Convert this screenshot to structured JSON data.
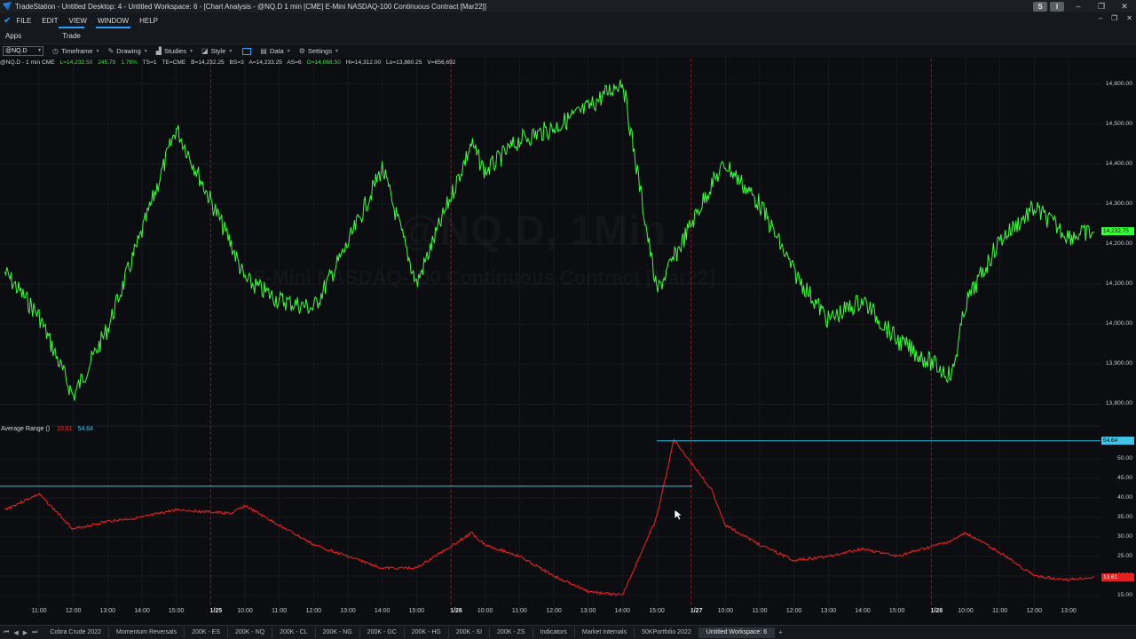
{
  "window": {
    "title": "TradeStation  - Untitled Desktop: 4 - Untitled Workspace:  6 - [Chart Analysis - @NQ.D 1 min [CME] E-Mini NASDAQ-100 Continuous Contract [Mar22]]",
    "s_button": "S",
    "i_button": "I"
  },
  "menu": {
    "items": [
      "FILE",
      "EDIT",
      "VIEW",
      "WINDOW",
      "HELP"
    ]
  },
  "tabs": [
    "Apps",
    "Trade"
  ],
  "toolbar": {
    "symbol": "@NQ.D",
    "timeframe": "Timeframe",
    "drawing": "Drawing",
    "studies": "Studies",
    "style": "Style",
    "data": "Data",
    "settings": "Settings"
  },
  "infoline": {
    "symbol": "@NQ.D - 1 min  CME",
    "last": "L=14,232.50",
    "change": "245.75",
    "pct": "1.76%",
    "ts": "TS=1",
    "te": "TE=CME",
    "bid": "B=14,232.25",
    "bs": "BS=3",
    "ask": "A=14,233.25",
    "as": "AS=6",
    "open": "O=14,068.50",
    "high": "Hi=14,312.00",
    "low": "Lo=13,860.25",
    "vol": "V=656,692"
  },
  "watermark": {
    "line1": "@NQ.D, 1Min",
    "line2": "E-Mini NASDAQ-100 Continuous Contract [Mar22]"
  },
  "indicator": {
    "name": "Average Range ()",
    "value_red": "19.61",
    "value_blue": "54.64"
  },
  "price_axis": {
    "labels": [
      "14,600.00",
      "14,500.00",
      "14,400.00",
      "14,300.00",
      "14,200.00",
      "14,100.00",
      "14,000.00",
      "13,900.00",
      "13,800.00"
    ],
    "last_tag": "14,232.75"
  },
  "ind_axis": {
    "labels": [
      "50.00",
      "45.00",
      "40.00",
      "35.00",
      "30.00",
      "25.00",
      "20.00",
      "15.00"
    ],
    "blue_tag": "54.64",
    "red_tag": "19.61"
  },
  "time_axis": {
    "labels": [
      "11:00",
      "12:00",
      "13:00",
      "14:00",
      "15:00",
      "1/25",
      "10:00",
      "11:00",
      "12:00",
      "13:00",
      "14:00",
      "15:00",
      "1/26",
      "10:00",
      "11:00",
      "12:00",
      "13:00",
      "14:00",
      "15:00",
      "1/27",
      "10:00",
      "11:00",
      "12:00",
      "13:00",
      "14:00",
      "15:00",
      "1/28",
      "10:00",
      "11:00",
      "12:00",
      "13:00"
    ]
  },
  "workspace_tabs": [
    "Cobra Crude 2022",
    "Momentum Reversals",
    "200K - ES",
    "200K - NQ",
    "200K - CL",
    "200K - NG",
    "200K - GC",
    "200K - HG",
    "200K - SI",
    "200K - ZS",
    "Indicators",
    "Market Internals",
    "50KPortfolio 2022",
    "Untitled Workspace: 6"
  ],
  "colors": {
    "price_line": "#39ff39",
    "indicator_line": "#e52020",
    "blue_line": "#3fc3e6",
    "session_line": "#b02020",
    "accent": "#2aa1ff"
  },
  "chart_data": {
    "type": "line",
    "title": "@NQ.D - 1 min CME",
    "price_series": {
      "name": "@NQ.D",
      "x": [
        "1/24 10:00",
        "1/24 11:00",
        "1/24 12:00",
        "1/24 13:00",
        "1/24 14:00",
        "1/24 15:00",
        "1/25 09:30",
        "1/25 10:00",
        "1/25 11:00",
        "1/25 12:00",
        "1/25 13:00",
        "1/25 14:00",
        "1/25 15:00",
        "1/26 09:30",
        "1/26 10:00",
        "1/26 11:00",
        "1/26 12:00",
        "1/26 13:00",
        "1/26 14:00",
        "1/26 15:00",
        "1/27 09:30",
        "1/27 10:00",
        "1/27 11:00",
        "1/27 12:00",
        "1/27 13:00",
        "1/27 14:00",
        "1/27 15:00",
        "1/28 09:30",
        "1/28 10:00",
        "1/28 11:00",
        "1/28 12:00",
        "1/28 13:00",
        "1/28 13:45"
      ],
      "y": [
        14130,
        14020,
        13820,
        13990,
        14230,
        14490,
        14200,
        14110,
        14060,
        14040,
        14200,
        14390,
        14100,
        14450,
        14380,
        14460,
        14490,
        14540,
        14610,
        14080,
        14350,
        14400,
        14300,
        14130,
        14010,
        14060,
        13960,
        13870,
        14050,
        14210,
        14290,
        14220,
        14230
      ]
    },
    "indicator_series": {
      "name": "Average Range ()",
      "x": [
        "1/24 10:00",
        "1/24 11:00",
        "1/24 12:00",
        "1/24 13:00",
        "1/24 14:00",
        "1/24 15:00",
        "1/25 09:30",
        "1/25 10:00",
        "1/25 11:00",
        "1/25 12:00",
        "1/25 13:00",
        "1/25 14:00",
        "1/25 15:00",
        "1/26 09:30",
        "1/26 10:00",
        "1/26 11:00",
        "1/26 12:00",
        "1/26 13:00",
        "1/26 14:00",
        "1/26 15:00",
        "1/26 15:30",
        "1/27 09:30",
        "1/27 10:00",
        "1/27 11:00",
        "1/27 12:00",
        "1/27 13:00",
        "1/27 14:00",
        "1/27 15:00",
        "1/28 09:30",
        "1/28 10:00",
        "1/28 11:00",
        "1/28 12:00",
        "1/28 13:00",
        "1/28 13:45"
      ],
      "y": [
        37,
        41,
        32,
        34,
        35,
        37,
        36,
        38,
        33,
        28,
        25,
        22,
        22,
        31,
        28,
        25,
        20,
        16,
        15,
        35,
        55,
        42,
        33,
        28,
        24,
        25,
        27,
        25,
        29,
        31,
        26,
        20,
        19,
        19.6
      ]
    },
    "blue_level": [
      {
        "from": "1/24 10:00",
        "to": "1/26 15:00",
        "value": 43
      },
      {
        "from": "1/26 15:00",
        "to": "1/28 13:45",
        "value": 54.64
      }
    ],
    "price_range": [
      13750,
      14650
    ],
    "indicator_range": [
      12,
      58
    ],
    "session_breaks": [
      "1/25",
      "1/26",
      "1/27",
      "1/28"
    ]
  }
}
